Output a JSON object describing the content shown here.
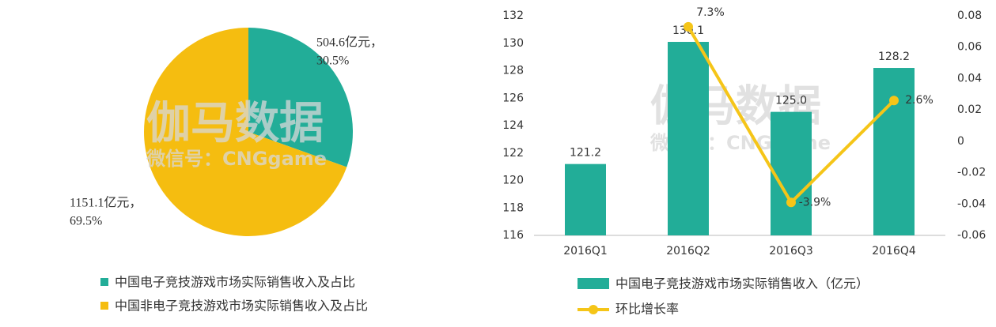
{
  "chart_data": [
    {
      "type": "pie",
      "watermark": [
        "伽马数据",
        "微信号：CNGgame"
      ],
      "series": [
        {
          "name": "中国电子竞技游戏市场实际销售收入及占比",
          "color": "#22ad98"
        },
        {
          "name": "中国非电子竞技游戏市场实际销售收入及占比",
          "color": "#f5bd10"
        }
      ],
      "values": [
        504.6,
        1151.1
      ],
      "value_labels": [
        "504.6亿元，",
        "1151.1亿元，"
      ],
      "shares": [
        30.5,
        69.5
      ],
      "share_labels": [
        "30.5%",
        "69.5%"
      ]
    },
    {
      "type": "bar",
      "watermark": [
        "伽马数据",
        "微信号：CNGgame"
      ],
      "categories": [
        "2016Q1",
        "2016Q2",
        "2016Q3",
        "2016Q4"
      ],
      "series": [
        {
          "name": "中国电子竞技游戏市场实际销售收入（亿元）",
          "type": "bar",
          "color": "#22ad98",
          "values": [
            121.2,
            130.1,
            125.0,
            128.2
          ],
          "value_labels": [
            "121.2",
            "130.1",
            "125.0",
            "128.2"
          ]
        },
        {
          "name": "环比增长率",
          "type": "line",
          "axis": "y2",
          "color": "#f5c518",
          "values": [
            null,
            0.073,
            -0.039,
            0.026
          ],
          "value_labels": [
            null,
            "7.3%",
            "-3.9%",
            "2.6%"
          ]
        }
      ],
      "ylim": [
        116,
        132
      ],
      "yticks": [
        116,
        118,
        120,
        122,
        124,
        126,
        128,
        130,
        132
      ],
      "y2lim": [
        -0.06,
        0.08
      ],
      "y2ticks": [
        -0.06,
        -0.04,
        -0.02,
        0,
        0.02,
        0.04,
        0.06,
        0.08
      ]
    }
  ]
}
